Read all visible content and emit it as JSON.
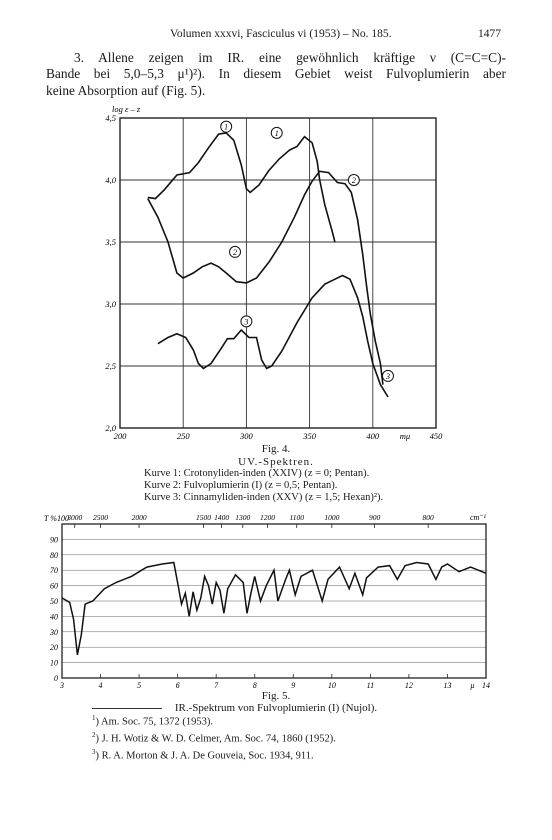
{
  "header": {
    "title": "Volumen xxxvi, Fasciculus vi (1953) – No. 185.",
    "page": "1477"
  },
  "paragraph": {
    "line1": "3. Allene zeigen im IR. eine gewöhnlich kräftige ν (C=C=C)-",
    "line2": "Bande bei 5,0–5,3 μ¹)²). In diesem Gebiet weist Fulvoplumierin aber",
    "line3": "keine Absorption auf (Fig. 5)."
  },
  "figure4": {
    "caption": "Fig. 4.",
    "subtitle": "UV.-Spektren.",
    "legend": [
      "Kurve 1: Crotonyliden-inden (XXIV) (z = 0; Pentan).",
      "Kurve 2: Fulvoplumierin (I) (z = 0,5; Pentan).",
      "Kurve 3: Cinnamyliden-inden (XXV) (z = 1,5; Hexan)²)."
    ],
    "chart_data": {
      "type": "line",
      "ylabel": "log ε – z",
      "xlabel": "mμ",
      "xlim": [
        200,
        450
      ],
      "ylim": [
        2.0,
        4.5
      ],
      "x_ticks": [
        "200",
        "250",
        "300",
        "350",
        "400",
        "mμ",
        "450"
      ],
      "y_ticks": [
        "2,0",
        "2,5",
        "3,0",
        "3,5",
        "4,0",
        "4,5"
      ],
      "grid": true,
      "curve_markers": [
        "1",
        "1",
        "2",
        "2",
        "3",
        "3"
      ],
      "series": [
        {
          "name": "1",
          "points": [
            [
              222,
              3.86
            ],
            [
              228,
              3.85
            ],
            [
              235,
              3.92
            ],
            [
              245,
              4.04
            ],
            [
              255,
              4.06
            ],
            [
              262,
              4.14
            ],
            [
              270,
              4.26
            ],
            [
              278,
              4.37
            ],
            [
              284,
              4.38
            ],
            [
              290,
              4.32
            ],
            [
              296,
              4.12
            ],
            [
              300,
              3.93
            ],
            [
              303,
              3.9
            ],
            [
              310,
              3.96
            ],
            [
              318,
              4.08
            ],
            [
              326,
              4.17
            ],
            [
              334,
              4.24
            ],
            [
              340,
              4.27
            ],
            [
              346,
              4.35
            ],
            [
              352,
              4.3
            ],
            [
              356,
              4.15
            ],
            [
              358,
              4.0
            ],
            [
              362,
              3.8
            ],
            [
              368,
              3.58
            ],
            [
              370,
              3.5
            ]
          ]
        },
        {
          "name": "2",
          "points": [
            [
              222,
              3.85
            ],
            [
              230,
              3.7
            ],
            [
              238,
              3.5
            ],
            [
              245,
              3.25
            ],
            [
              250,
              3.21
            ],
            [
              258,
              3.25
            ],
            [
              265,
              3.3
            ],
            [
              272,
              3.33
            ],
            [
              278,
              3.3
            ],
            [
              284,
              3.25
            ],
            [
              292,
              3.18
            ],
            [
              300,
              3.17
            ],
            [
              308,
              3.21
            ],
            [
              318,
              3.34
            ],
            [
              328,
              3.5
            ],
            [
              338,
              3.7
            ],
            [
              346,
              3.88
            ],
            [
              352,
              3.99
            ],
            [
              358,
              4.07
            ],
            [
              365,
              4.06
            ],
            [
              372,
              3.98
            ],
            [
              378,
              3.97
            ],
            [
              383,
              3.9
            ],
            [
              388,
              3.68
            ],
            [
              392,
              3.4
            ],
            [
              395,
              3.15
            ],
            [
              398,
              2.92
            ],
            [
              402,
              2.7
            ],
            [
              406,
              2.52
            ],
            [
              408,
              2.35
            ]
          ]
        },
        {
          "name": "3",
          "points": [
            [
              230,
              2.68
            ],
            [
              238,
              2.73
            ],
            [
              245,
              2.76
            ],
            [
              252,
              2.73
            ],
            [
              258,
              2.63
            ],
            [
              262,
              2.52
            ],
            [
              266,
              2.48
            ],
            [
              272,
              2.52
            ],
            [
              280,
              2.64
            ],
            [
              285,
              2.72
            ],
            [
              290,
              2.72
            ],
            [
              296,
              2.79
            ],
            [
              302,
              2.73
            ],
            [
              308,
              2.73
            ],
            [
              312,
              2.55
            ],
            [
              316,
              2.48
            ],
            [
              320,
              2.5
            ],
            [
              328,
              2.62
            ],
            [
              340,
              2.85
            ],
            [
              352,
              3.05
            ],
            [
              362,
              3.16
            ],
            [
              370,
              3.2
            ],
            [
              376,
              3.23
            ],
            [
              382,
              3.2
            ],
            [
              388,
              3.05
            ],
            [
              392,
              2.9
            ],
            [
              396,
              2.7
            ],
            [
              400,
              2.52
            ],
            [
              406,
              2.35
            ],
            [
              412,
              2.25
            ]
          ]
        }
      ]
    }
  },
  "figure5": {
    "caption": "Fig. 5.",
    "subtitle": "IR.-Spektrum von Fulvoplumierin (I) (Nujol).",
    "chart_data": {
      "type": "line",
      "ylabel": "T %100",
      "xlabel": "μ",
      "top_axis_label": "cm⁻¹",
      "xlim": [
        3,
        14
      ],
      "ylim": [
        0,
        100
      ],
      "x_ticks": [
        "3",
        "4",
        "5",
        "6",
        "7",
        "8",
        "9",
        "10",
        "11",
        "12",
        "13",
        "14"
      ],
      "y_ticks": [
        "0",
        "10",
        "20",
        "30",
        "40",
        "50",
        "60",
        "70",
        "80",
        "90"
      ],
      "top_ticks": [
        {
          "label": "3000",
          "x": 3.33
        },
        {
          "label": "2500",
          "x": 4.0
        },
        {
          "label": "2000",
          "x": 5.0
        },
        {
          "label": "1500",
          "x": 6.67
        },
        {
          "label": "1400",
          "x": 7.14
        },
        {
          "label": "1300",
          "x": 7.69
        },
        {
          "label": "1200",
          "x": 8.33
        },
        {
          "label": "1100",
          "x": 9.09
        },
        {
          "label": "1000",
          "x": 10.0
        },
        {
          "label": "900",
          "x": 11.11
        },
        {
          "label": "800",
          "x": 12.5
        }
      ],
      "grid": true,
      "series": [
        {
          "name": "",
          "points": [
            [
              3.0,
              52
            ],
            [
              3.2,
              49
            ],
            [
              3.3,
              38
            ],
            [
              3.4,
              15
            ],
            [
              3.5,
              28
            ],
            [
              3.6,
              48
            ],
            [
              3.8,
              50
            ],
            [
              4.1,
              58
            ],
            [
              4.4,
              62
            ],
            [
              4.8,
              66
            ],
            [
              5.2,
              72
            ],
            [
              5.6,
              74
            ],
            [
              5.9,
              75
            ],
            [
              6.0,
              62
            ],
            [
              6.1,
              48
            ],
            [
              6.2,
              55
            ],
            [
              6.3,
              40
            ],
            [
              6.4,
              56
            ],
            [
              6.5,
              44
            ],
            [
              6.6,
              52
            ],
            [
              6.7,
              66
            ],
            [
              6.8,
              60
            ],
            [
              6.9,
              48
            ],
            [
              7.0,
              62
            ],
            [
              7.1,
              57
            ],
            [
              7.2,
              42
            ],
            [
              7.3,
              58
            ],
            [
              7.5,
              67
            ],
            [
              7.7,
              62
            ],
            [
              7.8,
              42
            ],
            [
              7.9,
              55
            ],
            [
              8.0,
              66
            ],
            [
              8.15,
              50
            ],
            [
              8.3,
              60
            ],
            [
              8.5,
              70
            ],
            [
              8.6,
              50
            ],
            [
              8.8,
              64
            ],
            [
              8.9,
              70
            ],
            [
              9.05,
              54
            ],
            [
              9.2,
              66
            ],
            [
              9.5,
              70
            ],
            [
              9.75,
              50
            ],
            [
              9.9,
              64
            ],
            [
              10.2,
              72
            ],
            [
              10.45,
              58
            ],
            [
              10.6,
              68
            ],
            [
              10.8,
              54
            ],
            [
              10.9,
              65
            ],
            [
              11.2,
              72
            ],
            [
              11.5,
              73
            ],
            [
              11.7,
              64
            ],
            [
              11.9,
              73
            ],
            [
              12.2,
              75
            ],
            [
              12.5,
              74
            ],
            [
              12.7,
              64
            ],
            [
              12.85,
              72
            ],
            [
              13.0,
              74
            ],
            [
              13.3,
              69
            ],
            [
              13.6,
              72
            ],
            [
              14.0,
              68
            ]
          ]
        }
      ]
    }
  },
  "footnotes": [
    {
      "num": "1",
      "text": "Am. Soc. 75, 1372 (1953)."
    },
    {
      "num": "2",
      "text": "J. H. Wotiz & W. D. Celmer, Am. Soc. 74, 1860 (1952)."
    },
    {
      "num": "3",
      "text": "R. A. Morton & J. A. De Gouveia, Soc. 1934, 911."
    }
  ]
}
